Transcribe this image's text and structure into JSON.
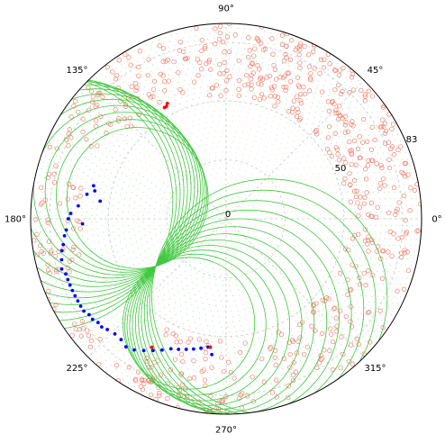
{
  "chart_data": {
    "type": "scatter",
    "projection": "polar",
    "title": "",
    "radial_ticks": [
      "0",
      "50",
      "83"
    ],
    "angle_ticks": [
      "0°",
      "45°",
      "90°",
      "135°",
      "180°",
      "225°",
      "270°",
      "315°"
    ],
    "r_max": 83,
    "grid": true,
    "colors": {
      "red_circles": "#f08070",
      "green_arcs": "#40c840",
      "blue_points": "#0000ff",
      "red_points": "#ff0000",
      "dot_lattice_green": "#70d070",
      "dot_lattice_orange": "#f0b070"
    },
    "arc_family": {
      "pivot": {
        "theta_deg": 214,
        "r": 36
      },
      "left_radii": [
        30,
        32,
        34,
        36,
        38,
        40,
        42,
        44,
        46,
        48,
        50,
        52,
        54
      ],
      "right_radii": [
        28,
        30,
        32,
        34,
        36,
        38,
        40,
        42,
        44,
        46,
        48,
        50
      ]
    },
    "blue_points": [
      {
        "theta": 166,
        "r": 58
      },
      {
        "theta": 168,
        "r": 57
      },
      {
        "theta": 170,
        "r": 60
      },
      {
        "theta": 172,
        "r": 54
      },
      {
        "theta": 175,
        "r": 63
      },
      {
        "theta": 178,
        "r": 66
      },
      {
        "theta": 180,
        "r": 67
      },
      {
        "theta": 182,
        "r": 61
      },
      {
        "theta": 184,
        "r": 68
      },
      {
        "theta": 186,
        "r": 69
      },
      {
        "theta": 189,
        "r": 70
      },
      {
        "theta": 191,
        "r": 71
      },
      {
        "theta": 194,
        "r": 72
      },
      {
        "theta": 197,
        "r": 73
      },
      {
        "theta": 199,
        "r": 72
      },
      {
        "theta": 201,
        "r": 72
      },
      {
        "theta": 203,
        "r": 72
      },
      {
        "theta": 205,
        "r": 72
      },
      {
        "theta": 207,
        "r": 72
      },
      {
        "theta": 209,
        "r": 72
      },
      {
        "theta": 211,
        "r": 72
      },
      {
        "theta": 213,
        "r": 72
      },
      {
        "theta": 215,
        "r": 71
      },
      {
        "theta": 217,
        "r": 71
      },
      {
        "theta": 219,
        "r": 70
      },
      {
        "theta": 221,
        "r": 70
      },
      {
        "theta": 223,
        "r": 69
      },
      {
        "theta": 226,
        "r": 68
      },
      {
        "theta": 229,
        "r": 68
      },
      {
        "theta": 232,
        "r": 69
      },
      {
        "theta": 235,
        "r": 68
      },
      {
        "theta": 238,
        "r": 66
      },
      {
        "theta": 241,
        "r": 64
      },
      {
        "theta": 244,
        "r": 62
      },
      {
        "theta": 247,
        "r": 60
      },
      {
        "theta": 250,
        "r": 59
      },
      {
        "theta": 253,
        "r": 58
      },
      {
        "theta": 256,
        "r": 57
      },
      {
        "theta": 259,
        "r": 56
      },
      {
        "theta": 262,
        "r": 55
      },
      {
        "theta": 264,
        "r": 58
      }
    ],
    "red_points": [
      {
        "theta": 117,
        "r": 55
      },
      {
        "theta": 118,
        "r": 54
      },
      {
        "theta": 119,
        "r": 54
      },
      {
        "theta": 240,
        "r": 63
      },
      {
        "theta": 263,
        "r": 55
      }
    ]
  }
}
